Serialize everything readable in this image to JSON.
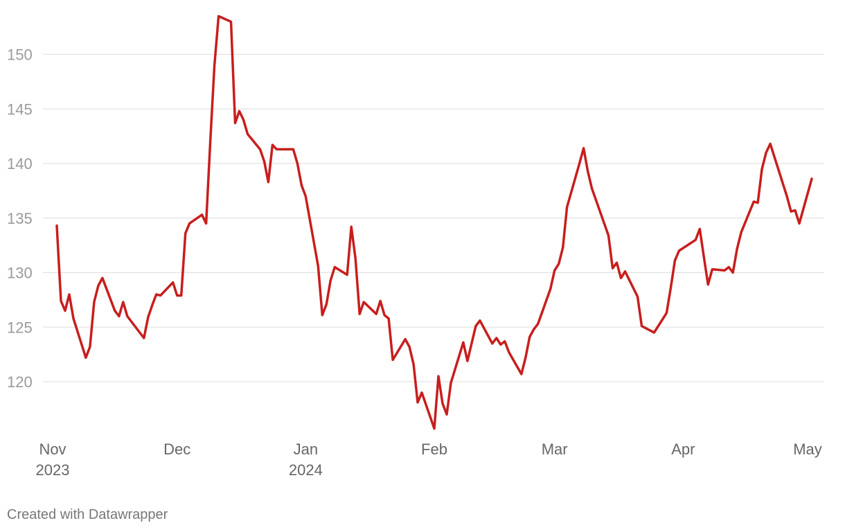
{
  "chart_data": {
    "type": "line",
    "title": "",
    "xlabel": "",
    "ylabel": "",
    "ylim": [
      115,
      154
    ],
    "y_ticks": [
      120,
      125,
      130,
      135,
      140,
      145,
      150
    ],
    "x_ticks": [
      {
        "date": "2023-11-01",
        "line1": "Nov",
        "line2": "2023"
      },
      {
        "date": "2023-12-01",
        "line1": "Dec",
        "line2": ""
      },
      {
        "date": "2024-01-01",
        "line1": "Jan",
        "line2": "2024"
      },
      {
        "date": "2024-02-01",
        "line1": "Feb",
        "line2": ""
      },
      {
        "date": "2024-03-01",
        "line1": "Mar",
        "line2": ""
      },
      {
        "date": "2024-04-01",
        "line1": "Apr",
        "line2": ""
      },
      {
        "date": "2024-05-01",
        "line1": "May",
        "line2": ""
      }
    ],
    "grid": true,
    "series": [
      {
        "color": "#c71e1d",
        "points": [
          [
            "2023-11-02",
            134.3
          ],
          [
            "2023-11-03",
            127.4
          ],
          [
            "2023-11-04",
            126.5
          ],
          [
            "2023-11-05",
            128.0
          ],
          [
            "2023-11-06",
            125.8
          ],
          [
            "2023-11-09",
            122.2
          ],
          [
            "2023-11-10",
            123.2
          ],
          [
            "2023-11-11",
            127.3
          ],
          [
            "2023-11-12",
            128.8
          ],
          [
            "2023-11-13",
            129.5
          ],
          [
            "2023-11-16",
            126.5
          ],
          [
            "2023-11-17",
            126.0
          ],
          [
            "2023-11-18",
            127.3
          ],
          [
            "2023-11-19",
            126.0
          ],
          [
            "2023-11-23",
            124.0
          ],
          [
            "2023-11-24",
            125.9
          ],
          [
            "2023-11-25",
            127.0
          ],
          [
            "2023-11-26",
            128.0
          ],
          [
            "2023-11-27",
            127.9
          ],
          [
            "2023-11-30",
            129.1
          ],
          [
            "2023-12-01",
            127.9
          ],
          [
            "2023-12-02",
            127.9
          ],
          [
            "2023-12-03",
            133.6
          ],
          [
            "2023-12-04",
            134.5
          ],
          [
            "2023-12-07",
            135.3
          ],
          [
            "2023-12-08",
            134.5
          ],
          [
            "2023-12-09",
            142.0
          ],
          [
            "2023-12-10",
            149.0
          ],
          [
            "2023-12-11",
            153.5
          ],
          [
            "2023-12-14",
            153.0
          ],
          [
            "2023-12-15",
            143.7
          ],
          [
            "2023-12-16",
            144.8
          ],
          [
            "2023-12-17",
            144.0
          ],
          [
            "2023-12-18",
            142.7
          ],
          [
            "2023-12-21",
            141.3
          ],
          [
            "2023-12-22",
            140.2
          ],
          [
            "2023-12-23",
            138.3
          ],
          [
            "2023-12-24",
            141.7
          ],
          [
            "2023-12-25",
            141.3
          ],
          [
            "2023-12-28",
            141.3
          ],
          [
            "2023-12-29",
            141.3
          ],
          [
            "2023-12-30",
            140.0
          ],
          [
            "2023-12-31",
            138.0
          ],
          [
            "2024-01-01",
            137.0
          ],
          [
            "2024-01-04",
            130.6
          ],
          [
            "2024-01-05",
            126.1
          ],
          [
            "2024-01-06",
            127.1
          ],
          [
            "2024-01-07",
            129.3
          ],
          [
            "2024-01-08",
            130.5
          ],
          [
            "2024-01-11",
            129.8
          ],
          [
            "2024-01-12",
            134.2
          ],
          [
            "2024-01-13",
            131.3
          ],
          [
            "2024-01-14",
            126.2
          ],
          [
            "2024-01-15",
            127.3
          ],
          [
            "2024-01-18",
            126.2
          ],
          [
            "2024-01-19",
            127.4
          ],
          [
            "2024-01-20",
            126.1
          ],
          [
            "2024-01-21",
            125.8
          ],
          [
            "2024-01-22",
            122.0
          ],
          [
            "2024-01-25",
            123.9
          ],
          [
            "2024-01-26",
            123.2
          ],
          [
            "2024-01-27",
            121.6
          ],
          [
            "2024-01-28",
            118.1
          ],
          [
            "2024-01-29",
            119.0
          ],
          [
            "2024-02-01",
            115.7
          ],
          [
            "2024-02-02",
            120.5
          ],
          [
            "2024-02-03",
            118.0
          ],
          [
            "2024-02-04",
            117.0
          ],
          [
            "2024-02-05",
            119.9
          ],
          [
            "2024-02-08",
            123.6
          ],
          [
            "2024-02-09",
            121.9
          ],
          [
            "2024-02-10",
            123.5
          ],
          [
            "2024-02-11",
            125.1
          ],
          [
            "2024-02-12",
            125.6
          ],
          [
            "2024-02-15",
            123.5
          ],
          [
            "2024-02-16",
            124.0
          ],
          [
            "2024-02-17",
            123.4
          ],
          [
            "2024-02-18",
            123.7
          ],
          [
            "2024-02-19",
            122.7
          ],
          [
            "2024-02-22",
            120.7
          ],
          [
            "2024-02-23",
            122.2
          ],
          [
            "2024-02-24",
            124.1
          ],
          [
            "2024-02-25",
            124.8
          ],
          [
            "2024-02-26",
            125.3
          ],
          [
            "2024-02-29",
            128.5
          ],
          [
            "2024-03-01",
            130.2
          ],
          [
            "2024-03-02",
            130.8
          ],
          [
            "2024-03-03",
            132.3
          ],
          [
            "2024-03-04",
            136.0
          ],
          [
            "2024-03-07",
            140.0
          ],
          [
            "2024-03-08",
            141.4
          ],
          [
            "2024-03-09",
            139.3
          ],
          [
            "2024-03-10",
            137.7
          ],
          [
            "2024-03-14",
            133.4
          ],
          [
            "2024-03-15",
            130.4
          ],
          [
            "2024-03-16",
            130.9
          ],
          [
            "2024-03-17",
            129.5
          ],
          [
            "2024-03-18",
            130.1
          ],
          [
            "2024-03-21",
            127.8
          ],
          [
            "2024-03-22",
            125.1
          ],
          [
            "2024-03-25",
            124.5
          ],
          [
            "2024-03-28",
            126.3
          ],
          [
            "2024-03-29",
            128.6
          ],
          [
            "2024-03-30",
            131.1
          ],
          [
            "2024-03-31",
            132.0
          ],
          [
            "2024-04-04",
            133.0
          ],
          [
            "2024-04-05",
            134.0
          ],
          [
            "2024-04-06",
            131.4
          ],
          [
            "2024-04-07",
            128.9
          ],
          [
            "2024-04-08",
            130.3
          ],
          [
            "2024-04-11",
            130.2
          ],
          [
            "2024-04-12",
            130.5
          ],
          [
            "2024-04-13",
            130.0
          ],
          [
            "2024-04-14",
            132.2
          ],
          [
            "2024-04-15",
            133.7
          ],
          [
            "2024-04-18",
            136.5
          ],
          [
            "2024-04-19",
            136.4
          ],
          [
            "2024-04-20",
            139.5
          ],
          [
            "2024-04-21",
            141.0
          ],
          [
            "2024-04-22",
            141.8
          ],
          [
            "2024-04-26",
            137.0
          ],
          [
            "2024-04-27",
            135.6
          ],
          [
            "2024-04-28",
            135.7
          ],
          [
            "2024-04-29",
            134.5
          ],
          [
            "2024-05-02",
            138.6
          ]
        ]
      }
    ]
  },
  "footer": {
    "credit": "Created with Datawrapper"
  }
}
